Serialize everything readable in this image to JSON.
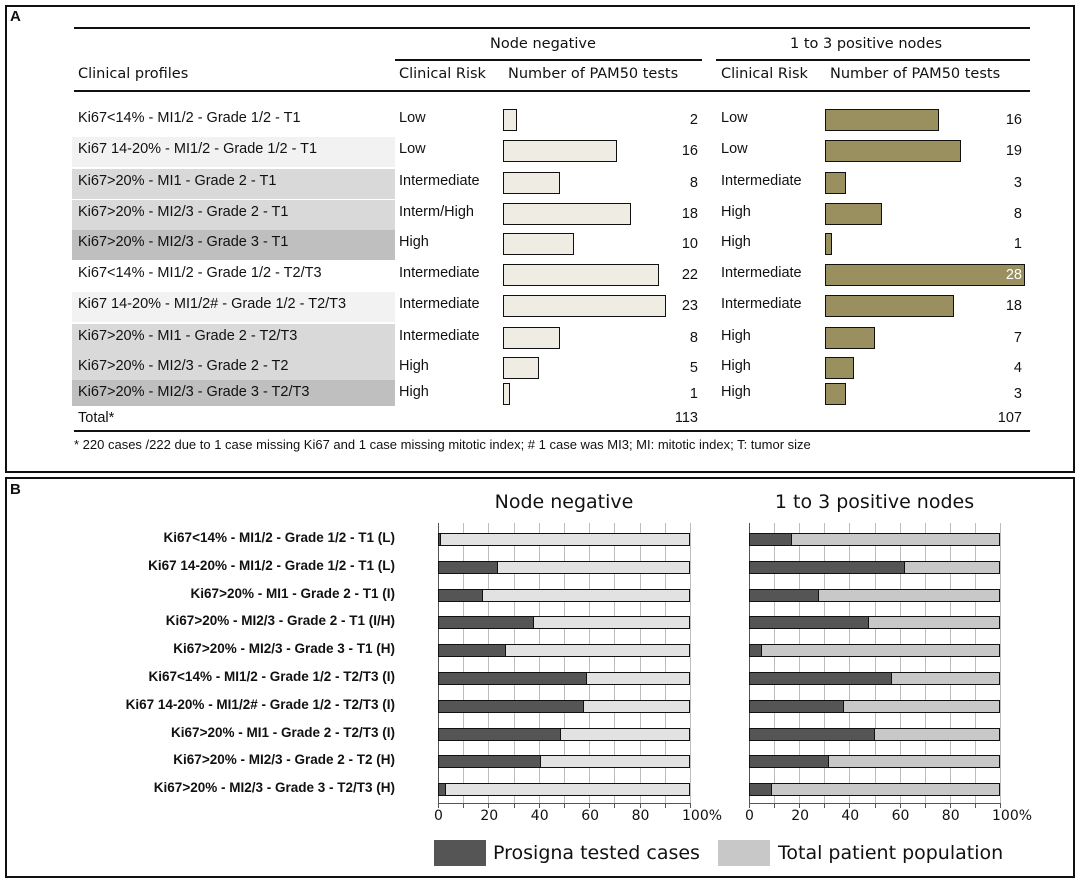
{
  "panel_a": {
    "label": "A",
    "header": {
      "profiles": "Clinical profiles",
      "node_negative": "Node negative",
      "positive_nodes": "1 to 3 positive nodes",
      "clinical_risk": "Clinical Risk",
      "number_tests": "Number of PAM50 tests"
    },
    "rows": [
      {
        "profile": "Ki67<14% - MI1/2 - Grade 1/2 - T1",
        "shade": "#ffffff",
        "nn_risk": "Low",
        "nn_n": 2,
        "pn_risk": "Low",
        "pn_n": 16
      },
      {
        "profile": "Ki67 14-20% - MI1/2 - Grade 1/2 - T1",
        "shade": "#f2f2f2",
        "nn_risk": "Low",
        "nn_n": 16,
        "pn_risk": "Low",
        "pn_n": 19
      },
      {
        "profile": "Ki67>20% - MI1 - Grade 2 - T1",
        "shade": "#d9d9d9",
        "nn_risk": "Intermediate",
        "nn_n": 8,
        "pn_risk": "Intermediate",
        "pn_n": 3
      },
      {
        "profile": "Ki67>20% - MI2/3 - Grade 2 - T1",
        "shade": "#d9d9d9",
        "nn_risk": "Interm/High",
        "nn_n": 18,
        "pn_risk": "High",
        "pn_n": 8
      },
      {
        "profile": "Ki67>20% - MI2/3 - Grade 3 - T1",
        "shade": "#bfbfbf",
        "nn_risk": "High",
        "nn_n": 10,
        "pn_risk": "High",
        "pn_n": 1
      },
      {
        "profile": "Ki67<14% - MI1/2 - Grade 1/2 - T2/T3",
        "shade": "#ffffff",
        "nn_risk": "Intermediate",
        "nn_n": 22,
        "pn_risk": "Intermediate",
        "pn_n": 28
      },
      {
        "profile": "Ki67 14-20% - MI1/2# - Grade 1/2 - T2/T3",
        "shade": "#f2f2f2",
        "nn_risk": "Intermediate",
        "nn_n": 23,
        "pn_risk": "Intermediate",
        "pn_n": 18
      },
      {
        "profile": "Ki67>20% - MI1 - Grade 2 - T2/T3",
        "shade": "#d9d9d9",
        "nn_risk": "Intermediate",
        "nn_n": 8,
        "pn_risk": "High",
        "pn_n": 7
      },
      {
        "profile": "Ki67>20% - MI2/3 - Grade 2 - T2",
        "shade": "#d9d9d9",
        "nn_risk": "High",
        "nn_n": 5,
        "pn_risk": "High",
        "pn_n": 4
      },
      {
        "profile": "Ki67>20% - MI2/3 - Grade 3 - T2/T3",
        "shade": "#bfbfbf",
        "nn_risk": "High",
        "nn_n": 1,
        "pn_risk": "High",
        "pn_n": 3
      }
    ],
    "total_label": "Total*",
    "nn_total": 113,
    "pn_total": 107,
    "footnote": "* 220 cases /222 due to 1 case missing Ki67 and 1 case missing mitotic index; # 1 case was MI3; MI: mitotic index; T: tumor size",
    "colors": {
      "node_negative_bar": "#efece4",
      "positive_nodes_bar": "#9a8f5e"
    }
  },
  "chart_data": {
    "type": "bar",
    "orientation": "horizontal-stacked-100",
    "panel_label": "B",
    "categories": [
      "Ki67<14% - MI1/2 - Grade 1/2 - T1 (L)",
      "Ki67 14-20% - MI1/2 - Grade 1/2 - T1 (L)",
      "Ki67>20% - MI1 - Grade 2 - T1 (I)",
      "Ki67>20% - MI2/3 - Grade 2 - T1 (I/H)",
      "Ki67>20% - MI2/3 - Grade 3 - T1 (H)",
      "Ki67<14% - MI1/2 - Grade 1/2 - T2/T3 (I)",
      "Ki67 14-20% - MI1/2# - Grade 1/2 - T2/T3 (I)",
      "Ki67>20% - MI1 - Grade 2 - T2/T3 (I)",
      "Ki67>20% - MI2/3 - Grade 2 - T2 (H)",
      "Ki67>20% - MI2/3 - Grade 3 - T2/T3 (H)"
    ],
    "panels": [
      {
        "title": "Node negative",
        "series": [
          {
            "name": "Prosigna tested cases",
            "values": [
              1,
              24,
              18,
              38,
              27,
              59,
              58,
              49,
              41,
              3
            ]
          },
          {
            "name": "Total patient population",
            "values": [
              99,
              76,
              82,
              62,
              73,
              41,
              42,
              51,
              59,
              97
            ]
          }
        ]
      },
      {
        "title": "1 to 3 positive nodes",
        "series": [
          {
            "name": "Prosigna tested cases",
            "values": [
              17,
              62,
              28,
              48,
              5,
              57,
              38,
              50,
              32,
              9
            ]
          },
          {
            "name": "Total patient population",
            "values": [
              83,
              38,
              72,
              52,
              95,
              43,
              62,
              50,
              68,
              91
            ]
          }
        ]
      }
    ],
    "x_ticks": [
      "0",
      "20",
      "40",
      "60",
      "80",
      "100%"
    ],
    "xlim": [
      0,
      100
    ],
    "grid": true,
    "legend": {
      "placement": "bottom",
      "entries": [
        "Prosigna tested cases",
        "Total patient population"
      ]
    },
    "colors": {
      "tested": "#555555",
      "total_nn": "#e2e2e2",
      "total_pn": "#c8c8c8"
    }
  }
}
